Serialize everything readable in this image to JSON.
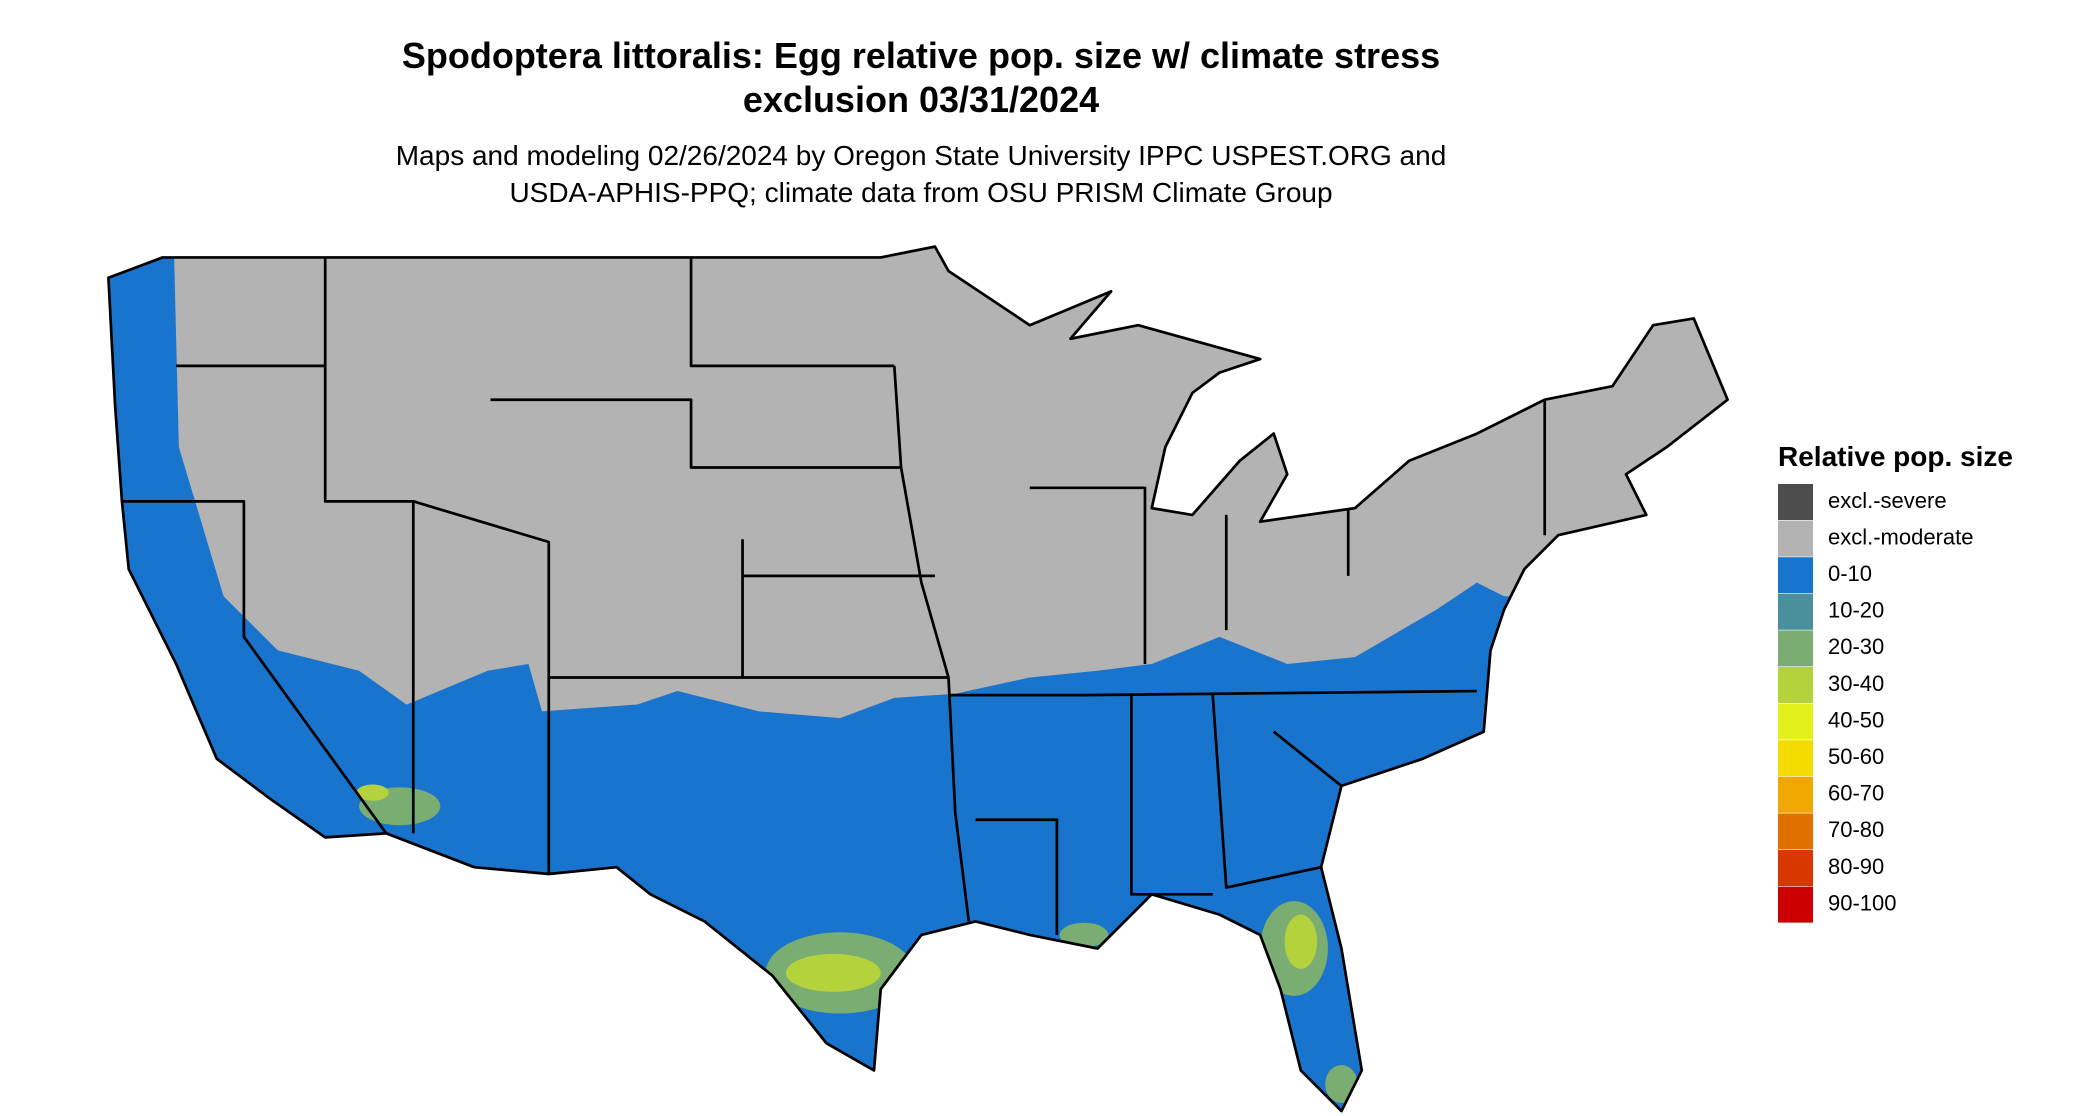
{
  "header": {
    "title_lines": [
      "Spodoptera littoralis: Egg relative pop. size w/ climate stress",
      "exclusion 03/31/2024"
    ],
    "subtitle_lines": [
      "Maps and modeling 02/26/2024 by Oregon State University IPPC USPEST.ORG and",
      "USDA-APHIS-PPQ; climate data from OSU PRISM Climate Group"
    ]
  },
  "legend": {
    "title": "Relative pop. size",
    "items": [
      {
        "label": "excl.-severe",
        "color": "#4d4d4d"
      },
      {
        "label": "excl.-moderate",
        "color": "#b3b3b3"
      },
      {
        "label": "0-10",
        "color": "#1874cd"
      },
      {
        "label": "10-20",
        "color": "#4a8f9c"
      },
      {
        "label": "20-30",
        "color": "#7aad72"
      },
      {
        "label": "30-40",
        "color": "#b4d23c"
      },
      {
        "label": "40-50",
        "color": "#e4f01c"
      },
      {
        "label": "50-60",
        "color": "#f5dc00"
      },
      {
        "label": "60-70",
        "color": "#f0a800"
      },
      {
        "label": "70-80",
        "color": "#e07000"
      },
      {
        "label": "80-90",
        "color": "#d83800"
      },
      {
        "label": "90-100",
        "color": "#cc0000"
      }
    ]
  }
}
